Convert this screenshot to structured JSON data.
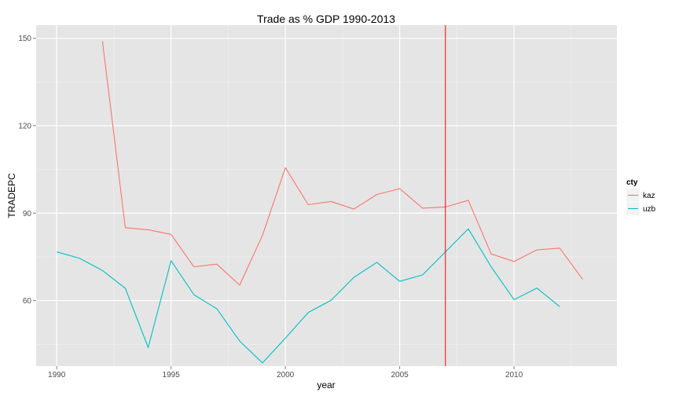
{
  "chart_data": {
    "type": "line",
    "title": "Trade as % GDP 1990-2013",
    "xlabel": "year",
    "ylabel": "TRADEPC",
    "xlim": [
      1989.1,
      2014.5
    ],
    "ylim": [
      37.5,
      154.5
    ],
    "x_ticks": [
      1990,
      1995,
      2000,
      2005,
      2010
    ],
    "x_tick_labels": [
      "1990",
      "1995",
      "2000",
      "2005",
      "2010"
    ],
    "y_ticks": [
      60,
      90,
      120,
      150
    ],
    "y_tick_labels": [
      "60",
      "90",
      "120",
      "150"
    ],
    "grid": true,
    "legend": {
      "title": "cty",
      "position": "right"
    },
    "reference_line": {
      "axis": "x",
      "value": 2007,
      "color": "#ff0000"
    },
    "series": [
      {
        "name": "kaz",
        "color": "#f8766d",
        "points": [
          [
            1992,
            149.0
          ],
          [
            1993,
            85.0
          ],
          [
            1994,
            84.3
          ],
          [
            1995,
            82.7
          ],
          [
            1996,
            71.6
          ],
          [
            1997,
            72.5
          ],
          [
            1998,
            65.3
          ],
          [
            1999,
            82.4
          ],
          [
            2000,
            105.6
          ],
          [
            2001,
            92.9
          ],
          [
            2002,
            94.0
          ],
          [
            2003,
            91.4
          ],
          [
            2004,
            96.4
          ],
          [
            2005,
            98.4
          ],
          [
            2006,
            91.7
          ],
          [
            2007,
            92.1
          ],
          [
            2008,
            94.4
          ],
          [
            2009,
            76.0
          ],
          [
            2010,
            73.4
          ],
          [
            2011,
            77.4
          ],
          [
            2012,
            78.0
          ],
          [
            2013,
            67.3
          ]
        ]
      },
      {
        "name": "uzb",
        "color": "#00bfc4",
        "points": [
          [
            1990,
            76.7
          ],
          [
            1991,
            74.5
          ],
          [
            1992,
            70.3
          ],
          [
            1993,
            64.2
          ],
          [
            1994,
            43.9
          ],
          [
            1995,
            73.7
          ],
          [
            1996,
            62.0
          ],
          [
            1997,
            57.2
          ],
          [
            1998,
            46.1
          ],
          [
            1999,
            38.6
          ],
          [
            2000,
            47.1
          ],
          [
            2001,
            55.9
          ],
          [
            2002,
            60.1
          ],
          [
            2003,
            68.0
          ],
          [
            2004,
            73.1
          ],
          [
            2005,
            66.6
          ],
          [
            2006,
            68.8
          ],
          [
            2007,
            76.7
          ],
          [
            2008,
            84.6
          ],
          [
            2009,
            71.6
          ],
          [
            2010,
            60.3
          ],
          [
            2011,
            64.3
          ],
          [
            2012,
            57.9
          ]
        ]
      }
    ]
  }
}
